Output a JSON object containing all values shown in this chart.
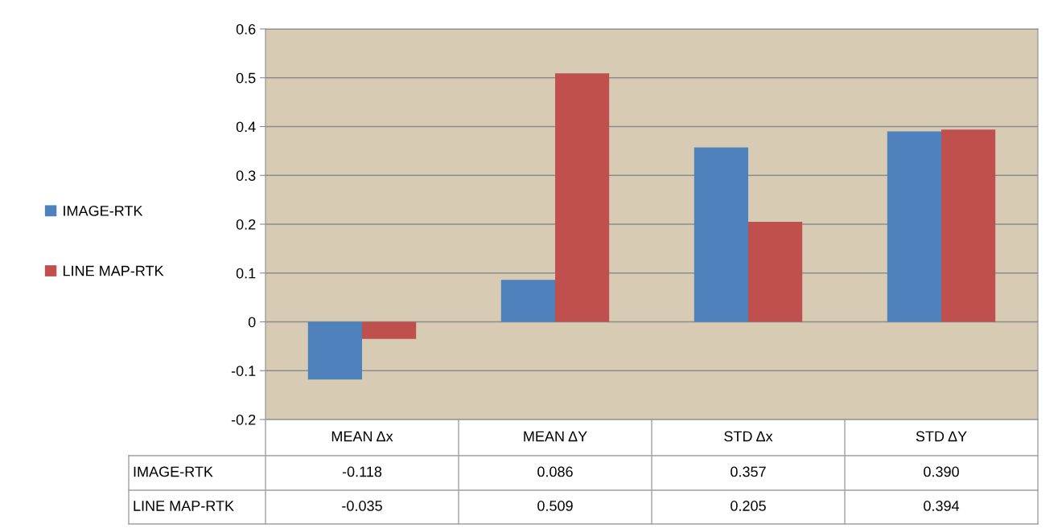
{
  "chart_data": {
    "type": "bar",
    "categories": [
      "MEAN Δx",
      "MEAN ΔY",
      "STD Δx",
      "STD ΔY"
    ],
    "series": [
      {
        "name": "IMAGE-RTK",
        "color": "#4f81bd",
        "values": [
          -0.118,
          0.086,
          0.357,
          0.39
        ],
        "value_labels": [
          "-0.118",
          "0.086",
          "0.357",
          "0.390"
        ]
      },
      {
        "name": "LINE MAP-RTK",
        "color": "#c0504d",
        "values": [
          -0.035,
          0.509,
          0.205,
          0.394
        ],
        "value_labels": [
          "-0.035",
          "0.509",
          "0.205",
          "0.394"
        ]
      }
    ],
    "ylim": [
      -0.2,
      0.6
    ],
    "yticks": [
      -0.2,
      -0.1,
      0,
      0.1,
      0.2,
      0.3,
      0.4,
      0.5,
      0.6
    ],
    "grid": "y",
    "legend": "left"
  }
}
